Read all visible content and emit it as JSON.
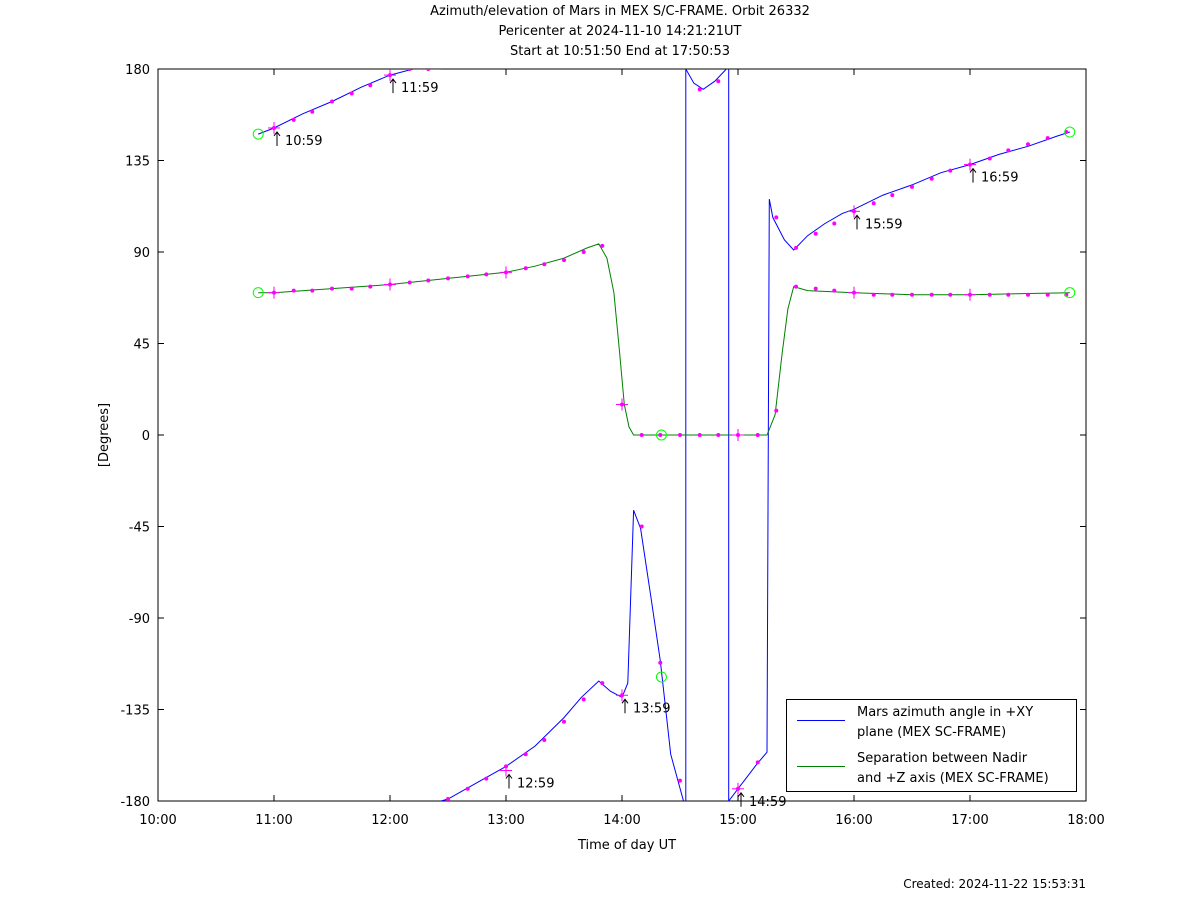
{
  "chart_data": {
    "type": "line",
    "title": [
      "Azimuth/elevation of Mars in MEX S/C-FRAME.  Orbit 26332",
      "Pericenter at 2024-11-10 14:21:21UT",
      "Start at 10:51:50 End at 17:50:53"
    ],
    "xlabel": "Time of day UT",
    "ylabel": "[Degrees]",
    "xlim": [
      10.0,
      18.0
    ],
    "ylim": [
      -180,
      180
    ],
    "x_ticks": [
      10,
      11,
      12,
      13,
      14,
      15,
      16,
      17,
      18
    ],
    "x_tick_labels": [
      "10:00",
      "11:00",
      "12:00",
      "13:00",
      "14:00",
      "15:00",
      "16:00",
      "17:00",
      "18:00"
    ],
    "y_ticks": [
      180,
      135,
      90,
      45,
      0,
      -45,
      -90,
      -135,
      -180
    ],
    "y_tick_labels": [
      "180",
      "135",
      "90",
      "45",
      "0",
      "-45",
      "-90",
      "-135",
      "-180"
    ],
    "grid": false,
    "legend_position": "bottom-right",
    "series": [
      {
        "name": "Mars azimuth angle in +XY\nplane (MEX SC-FRAME)",
        "color": "#0000ff",
        "segments": [
          [
            [
              10.864,
              148
            ],
            [
              11.0,
              151
            ],
            [
              11.25,
              158
            ],
            [
              11.5,
              164
            ],
            [
              11.75,
              171
            ],
            [
              12.0,
              177
            ],
            [
              12.2,
              182
            ],
            [
              12.33,
              188
            ],
            [
              12.44,
              196
            ]
          ],
          [
            [
              12.44,
              -180
            ],
            [
              12.5,
              -179
            ],
            [
              12.75,
              -171
            ],
            [
              13.0,
              -163
            ],
            [
              13.25,
              -153
            ],
            [
              13.5,
              -139
            ],
            [
              13.65,
              -129
            ],
            [
              13.8,
              -121
            ],
            [
              13.9,
              -126
            ],
            [
              14.0,
              -129
            ],
            [
              14.05,
              -122
            ],
            [
              14.1,
              -37
            ],
            [
              14.16,
              -46
            ],
            [
              14.25,
              -80
            ],
            [
              14.33,
              -111
            ],
            [
              14.42,
              -157
            ],
            [
              14.53,
              -180
            ]
          ],
          [
            [
              14.55,
              -180
            ],
            [
              14.55,
              180
            ],
            [
              14.62,
              173
            ],
            [
              14.7,
              170
            ],
            [
              14.8,
              174
            ],
            [
              14.9,
              180
            ],
            [
              14.92,
              180
            ],
            [
              14.92,
              -180
            ]
          ],
          [
            [
              14.92,
              -180
            ],
            [
              15.0,
              -174
            ],
            [
              15.16,
              -162
            ],
            [
              15.25,
              -156
            ],
            [
              15.27,
              116
            ],
            [
              15.3,
              107
            ],
            [
              15.4,
              96
            ],
            [
              15.48,
              91
            ],
            [
              15.6,
              98
            ],
            [
              15.75,
              104
            ],
            [
              15.9,
              109
            ],
            [
              16.0,
              111
            ],
            [
              16.25,
              118
            ],
            [
              16.5,
              123
            ],
            [
              16.75,
              129
            ],
            [
              17.0,
              133
            ],
            [
              17.25,
              138
            ],
            [
              17.5,
              142
            ],
            [
              17.75,
              147
            ],
            [
              17.86,
              149
            ]
          ]
        ]
      },
      {
        "name": "Separation between Nadir\nand +Z axis (MEX SC-FRAME)",
        "color": "#008000",
        "segments": [
          [
            [
              10.864,
              70
            ],
            [
              11.0,
              70
            ],
            [
              11.5,
              72
            ],
            [
              12.0,
              74
            ],
            [
              12.5,
              77
            ],
            [
              13.0,
              80
            ],
            [
              13.25,
              83
            ],
            [
              13.5,
              87
            ],
            [
              13.7,
              92
            ],
            [
              13.8,
              94
            ],
            [
              13.87,
              87
            ],
            [
              13.93,
              70
            ],
            [
              13.98,
              40
            ],
            [
              14.02,
              15
            ],
            [
              14.06,
              4
            ],
            [
              14.1,
              0
            ],
            [
              15.25,
              0
            ],
            [
              15.32,
              10
            ],
            [
              15.38,
              40
            ],
            [
              15.43,
              62
            ],
            [
              15.48,
              73
            ],
            [
              15.6,
              71
            ],
            [
              16.0,
              70
            ],
            [
              16.5,
              69
            ],
            [
              17.0,
              69
            ],
            [
              17.86,
              70
            ]
          ]
        ]
      }
    ],
    "markers": {
      "color": "#ff00ff",
      "azimuth_dots": [
        [
          11.0,
          151
        ],
        [
          11.17,
          155
        ],
        [
          11.33,
          159
        ],
        [
          11.5,
          164
        ],
        [
          11.67,
          168
        ],
        [
          11.83,
          172
        ],
        [
          12.0,
          177
        ],
        [
          12.17,
          181
        ],
        [
          12.33,
          186
        ],
        [
          12.5,
          -179
        ],
        [
          12.67,
          -174
        ],
        [
          12.83,
          -169
        ],
        [
          13.0,
          -163
        ],
        [
          13.17,
          -157
        ],
        [
          13.33,
          -150
        ],
        [
          13.5,
          -141
        ],
        [
          13.67,
          -130
        ],
        [
          13.83,
          -122
        ],
        [
          14.0,
          -128
        ],
        [
          14.17,
          -45
        ],
        [
          14.33,
          -112
        ],
        [
          14.5,
          -170
        ],
        [
          14.67,
          170
        ],
        [
          14.83,
          174
        ],
        [
          15.0,
          -174
        ],
        [
          15.17,
          -161
        ],
        [
          15.33,
          107
        ],
        [
          15.5,
          92
        ],
        [
          15.67,
          99
        ],
        [
          15.83,
          104
        ],
        [
          16.0,
          110
        ],
        [
          16.17,
          114
        ],
        [
          16.33,
          118
        ],
        [
          16.5,
          122
        ],
        [
          16.67,
          126
        ],
        [
          16.83,
          130
        ],
        [
          17.0,
          133
        ],
        [
          17.17,
          136
        ],
        [
          17.33,
          140
        ],
        [
          17.5,
          143
        ],
        [
          17.67,
          146
        ],
        [
          17.83,
          149
        ]
      ],
      "separation_dots": [
        [
          11.0,
          70
        ],
        [
          11.17,
          71
        ],
        [
          11.33,
          71
        ],
        [
          11.5,
          72
        ],
        [
          11.67,
          72
        ],
        [
          11.83,
          73
        ],
        [
          12.0,
          74
        ],
        [
          12.17,
          75
        ],
        [
          12.33,
          76
        ],
        [
          12.5,
          77
        ],
        [
          12.67,
          78
        ],
        [
          12.83,
          79
        ],
        [
          13.0,
          80
        ],
        [
          13.17,
          82
        ],
        [
          13.33,
          84
        ],
        [
          13.5,
          86
        ],
        [
          13.67,
          90
        ],
        [
          13.83,
          93
        ],
        [
          14.0,
          15
        ],
        [
          14.17,
          0
        ],
        [
          14.33,
          0
        ],
        [
          14.5,
          0
        ],
        [
          14.67,
          0
        ],
        [
          14.83,
          0
        ],
        [
          15.0,
          0
        ],
        [
          15.17,
          0
        ],
        [
          15.33,
          12
        ],
        [
          15.5,
          73
        ],
        [
          15.67,
          72
        ],
        [
          15.83,
          71
        ],
        [
          16.0,
          70
        ],
        [
          16.17,
          69
        ],
        [
          16.33,
          69
        ],
        [
          16.5,
          69
        ],
        [
          16.67,
          69
        ],
        [
          16.83,
          69
        ],
        [
          17.0,
          69
        ],
        [
          17.17,
          69
        ],
        [
          17.33,
          69
        ],
        [
          17.5,
          69
        ],
        [
          17.67,
          69
        ],
        [
          17.83,
          69
        ]
      ],
      "hour_crosses": [
        [
          11.0,
          151
        ],
        [
          12.0,
          177
        ],
        [
          13.0,
          -165
        ],
        [
          14.0,
          -128
        ],
        [
          15.0,
          -174
        ],
        [
          16.0,
          110
        ],
        [
          17.0,
          133
        ],
        [
          11.0,
          70
        ],
        [
          12.0,
          74
        ],
        [
          13.0,
          80
        ],
        [
          14.0,
          15
        ],
        [
          15.0,
          0
        ],
        [
          16.0,
          70
        ],
        [
          17.0,
          69
        ]
      ],
      "circle_color": "#00ff00",
      "circles": [
        [
          10.864,
          148
        ],
        [
          17.86,
          149
        ],
        [
          10.864,
          70
        ],
        [
          17.86,
          70
        ],
        [
          14.34,
          0
        ],
        [
          14.34,
          -119
        ]
      ]
    },
    "annotations": [
      {
        "label": "10:59",
        "x": 11.0,
        "y": 151
      },
      {
        "label": "11:59",
        "x": 12.0,
        "y": 177
      },
      {
        "label": "12:59",
        "x": 13.0,
        "y": -165
      },
      {
        "label": "13:59",
        "x": 14.0,
        "y": -128
      },
      {
        "label": "14:59",
        "x": 15.0,
        "y": -174
      },
      {
        "label": "15:59",
        "x": 16.0,
        "y": 110
      },
      {
        "label": "16:59",
        "x": 17.0,
        "y": 133
      }
    ]
  },
  "created": "Created: 2024-11-22 15:53:31"
}
